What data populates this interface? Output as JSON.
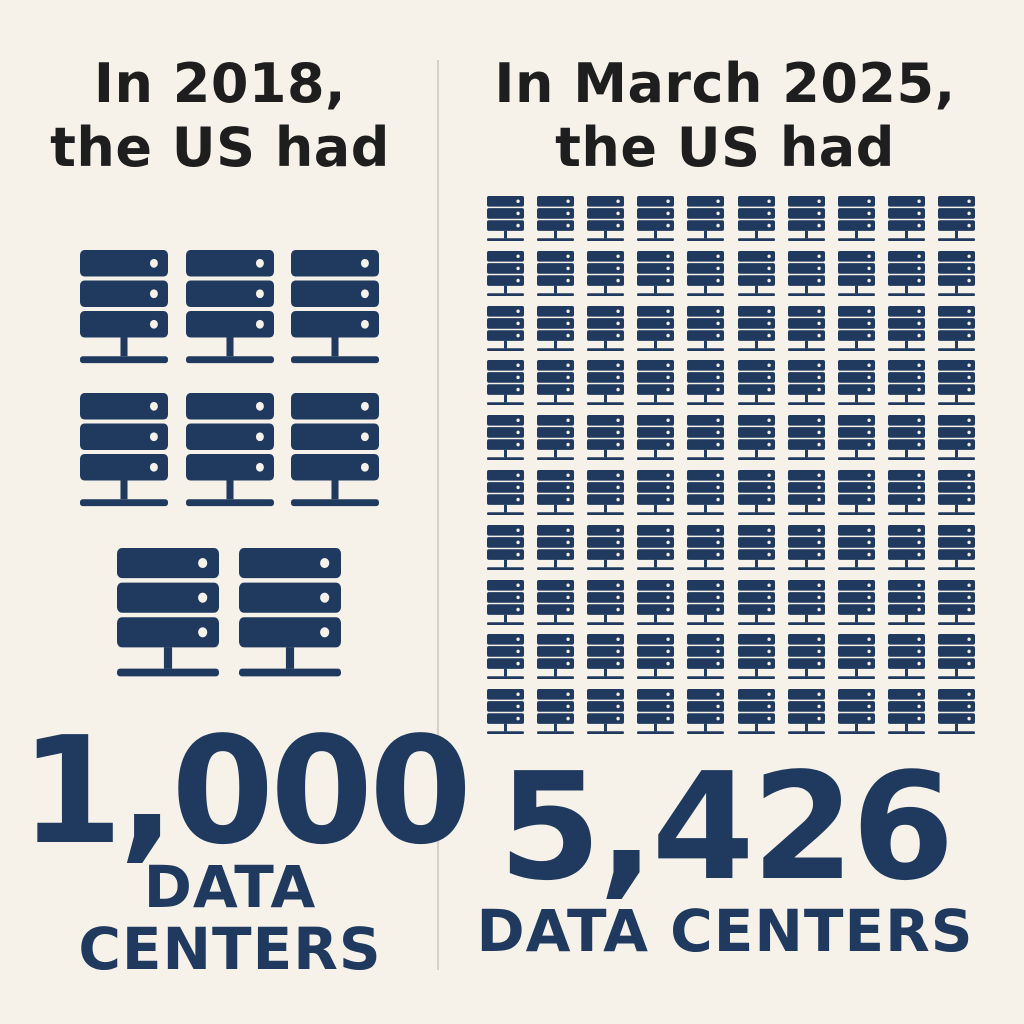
{
  "left_panel": {
    "heading_line1": "In 2018,",
    "heading_line2": "the US had",
    "number": "1,000",
    "caption_line1": "DATA",
    "caption_line2": "CENTERS"
  },
  "right_panel": {
    "heading_line1": "In March 2025,",
    "heading_line2": "the US had",
    "number": "5,426",
    "caption": "DATA CENTERS"
  },
  "icons": {
    "name": "server-rack-icon",
    "left_count": 8,
    "right_rows": 10,
    "right_cols": 10
  },
  "colors": {
    "background": "#f6f2ea",
    "icon": "#1f3a5e",
    "heading": "#1e1e1e",
    "divider": "#d4d0c8"
  }
}
